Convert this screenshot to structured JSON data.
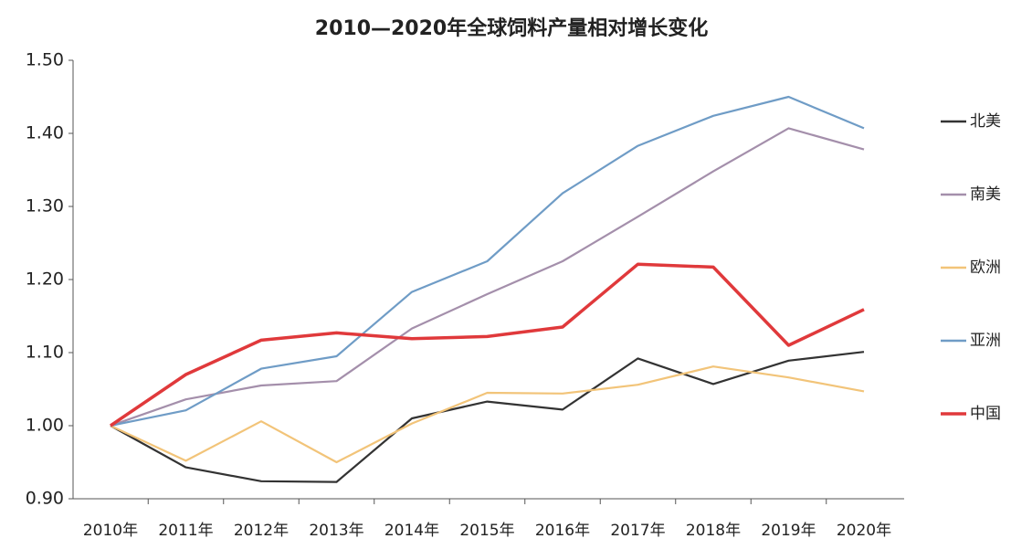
{
  "chart_data": {
    "type": "line",
    "title": "2010—2020年全球饲料产量相对增长变化",
    "categories": [
      "2010年",
      "2011年",
      "2012年",
      "2013年",
      "2014年",
      "2015年",
      "2016年",
      "2017年",
      "2018年",
      "2019年",
      "2020年"
    ],
    "series": [
      {
        "name": "北美",
        "color": "#333333",
        "values": [
          1.0,
          0.943,
          0.924,
          0.923,
          1.01,
          1.033,
          1.022,
          1.092,
          1.057,
          1.089,
          1.101
        ]
      },
      {
        "name": "南美",
        "color": "#a48fab",
        "values": [
          1.0,
          1.036,
          1.055,
          1.061,
          1.133,
          1.18,
          1.225,
          1.286,
          1.348,
          1.407,
          1.378
        ]
      },
      {
        "name": "欧洲",
        "color": "#f2c479",
        "values": [
          1.0,
          0.952,
          1.006,
          0.95,
          1.003,
          1.045,
          1.044,
          1.056,
          1.081,
          1.066,
          1.047
        ]
      },
      {
        "name": "亚洲",
        "color": "#6f9cc6",
        "values": [
          1.0,
          1.021,
          1.078,
          1.095,
          1.183,
          1.225,
          1.318,
          1.383,
          1.424,
          1.45,
          1.407
        ]
      },
      {
        "name": "中国",
        "color": "#e0393b",
        "values": [
          1.0,
          1.07,
          1.117,
          1.127,
          1.119,
          1.122,
          1.135,
          1.221,
          1.217,
          1.11,
          1.159
        ]
      }
    ],
    "ylim": [
      0.9,
      1.5
    ],
    "yticks": [
      {
        "value": 0.9,
        "label": "0.90"
      },
      {
        "value": 1.0,
        "label": "1.00"
      },
      {
        "value": 1.1,
        "label": "1.10"
      },
      {
        "value": 1.2,
        "label": "1.20"
      },
      {
        "value": 1.3,
        "label": "1.30"
      },
      {
        "value": 1.4,
        "label": "1.40"
      },
      {
        "value": 1.5,
        "label": "1.50"
      }
    ],
    "legend": "right"
  }
}
